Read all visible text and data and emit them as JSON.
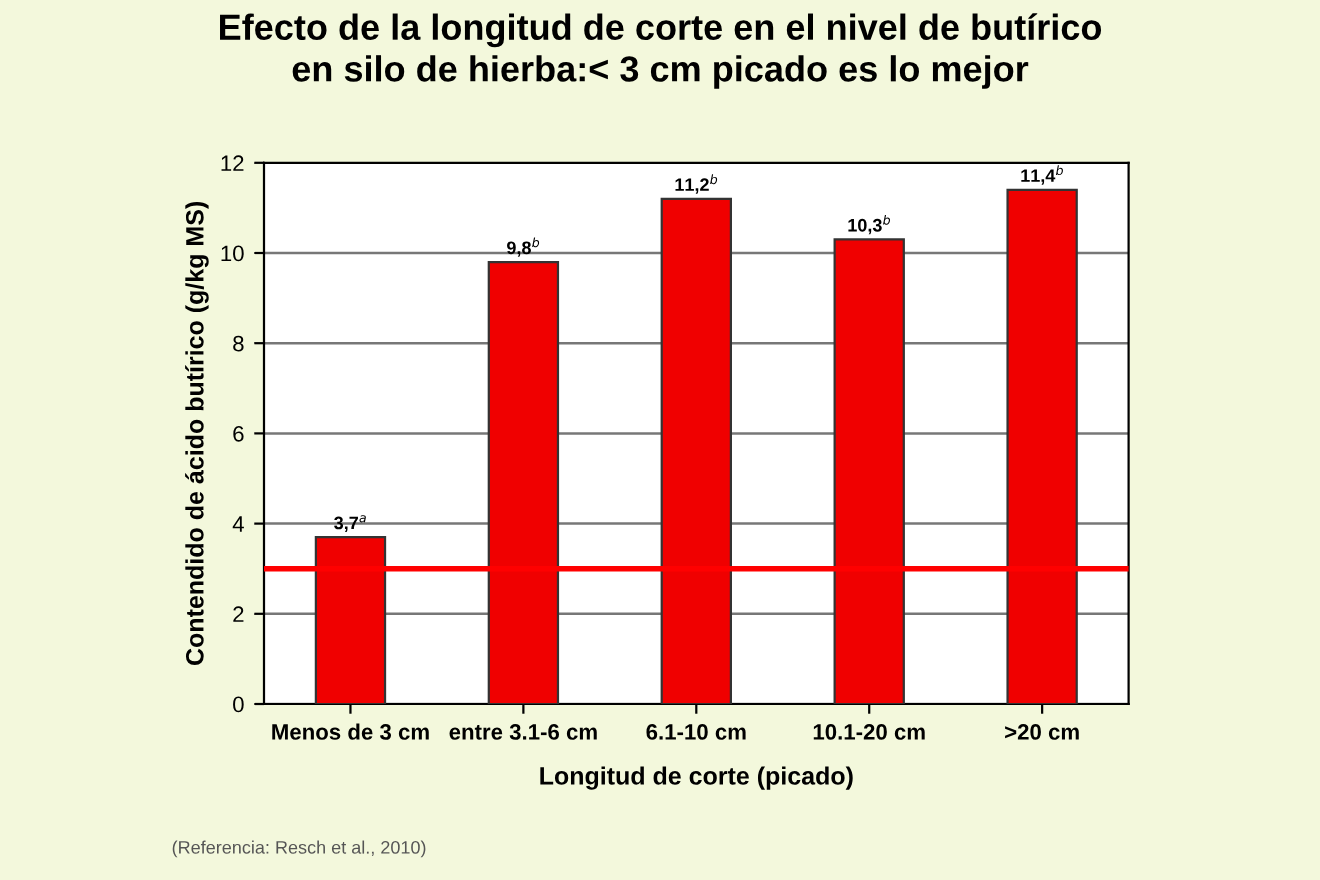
{
  "chart_data": {
    "type": "bar",
    "title": "Efecto de la longitud de corte en el nivel de butírico\nen silo de hierba:< 3 cm picado es lo mejor",
    "xlabel": "Longitud de corte (picado)",
    "ylabel": "Contendido de ácido butírico (g/kg MS)",
    "categories": [
      "Menos de 3 cm",
      "entre 3.1-6 cm",
      "6.1-10 cm",
      "10.1-20 cm",
      ">20 cm"
    ],
    "values": [
      3.7,
      9.8,
      11.2,
      10.3,
      11.4
    ],
    "color": "#f00000",
    "value_labels": [
      "3,7$^{a}$",
      "9,8$^{b}$",
      "11,2$^{b}$",
      "10,3$^{b}$",
      "11,4$^{b}$"
    ],
    "ylim": [
      0,
      12
    ],
    "yticks": [
      0,
      2,
      4,
      6,
      8,
      10,
      12
    ],
    "grid": "y",
    "ref_lines": [
      {
        "axis": "y",
        "value": 3,
        "color": "#ff0000"
      }
    ],
    "annotations": [
      "(Referencia: Resch et al., 2010)"
    ]
  }
}
